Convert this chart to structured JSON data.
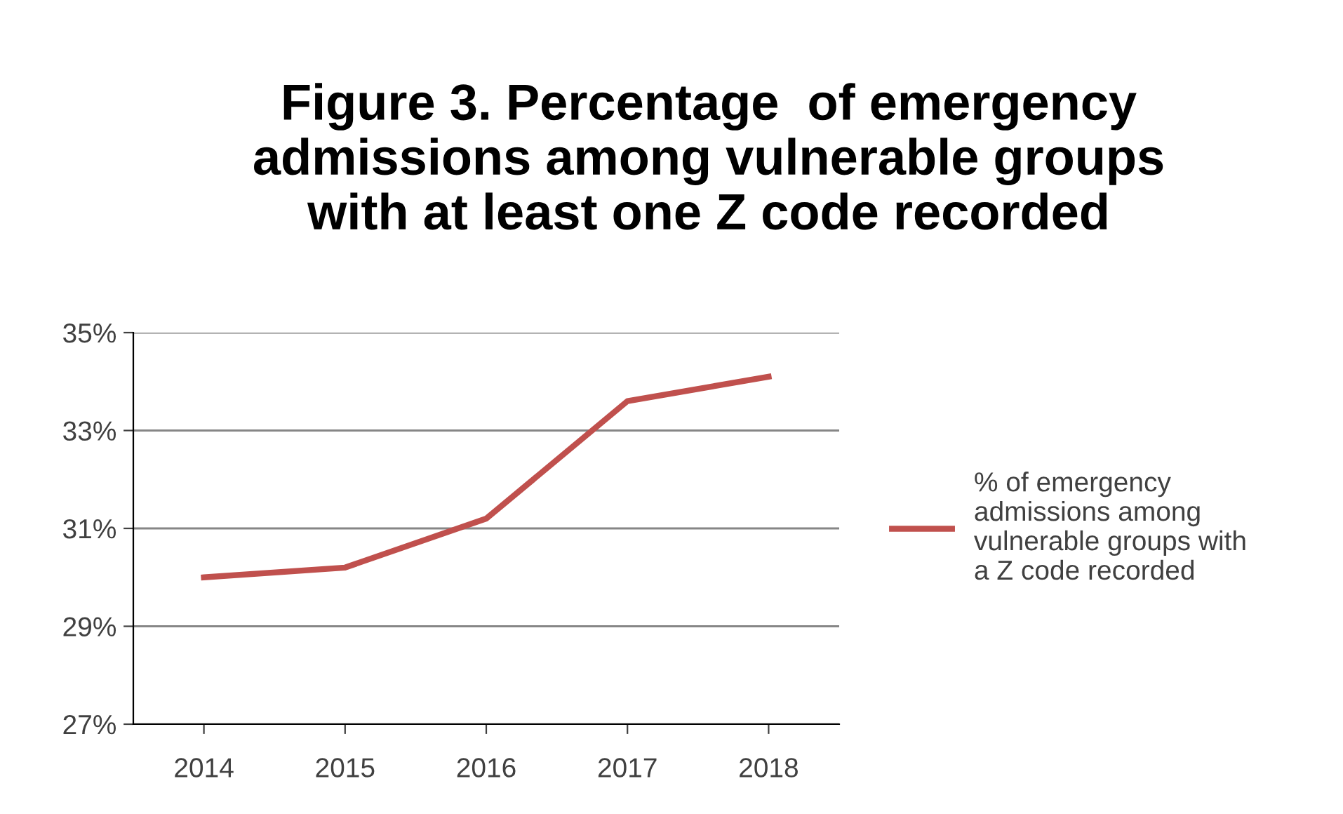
{
  "chart_data": {
    "type": "line",
    "title": "Figure 3. Percentage  of emergency admissions among vulnerable groups with at least one Z code recorded",
    "categories": [
      "2014",
      "2015",
      "2016",
      "2017",
      "2018"
    ],
    "series": [
      {
        "name": "% of emergency admissions among vulnerable groups with a Z code recorded",
        "color": "#c0504d",
        "values": [
          30.0,
          30.2,
          31.2,
          33.6,
          34.1
        ]
      }
    ],
    "ylim": [
      27,
      35
    ],
    "yticks": [
      {
        "value": 27,
        "label": "27%"
      },
      {
        "value": 29,
        "label": "29%"
      },
      {
        "value": 31,
        "label": "31%"
      },
      {
        "value": 33,
        "label": "33%"
      },
      {
        "value": 35,
        "label": "35%"
      }
    ],
    "grid": "y",
    "legend": "right",
    "marker": "none",
    "line_style": "solid"
  }
}
